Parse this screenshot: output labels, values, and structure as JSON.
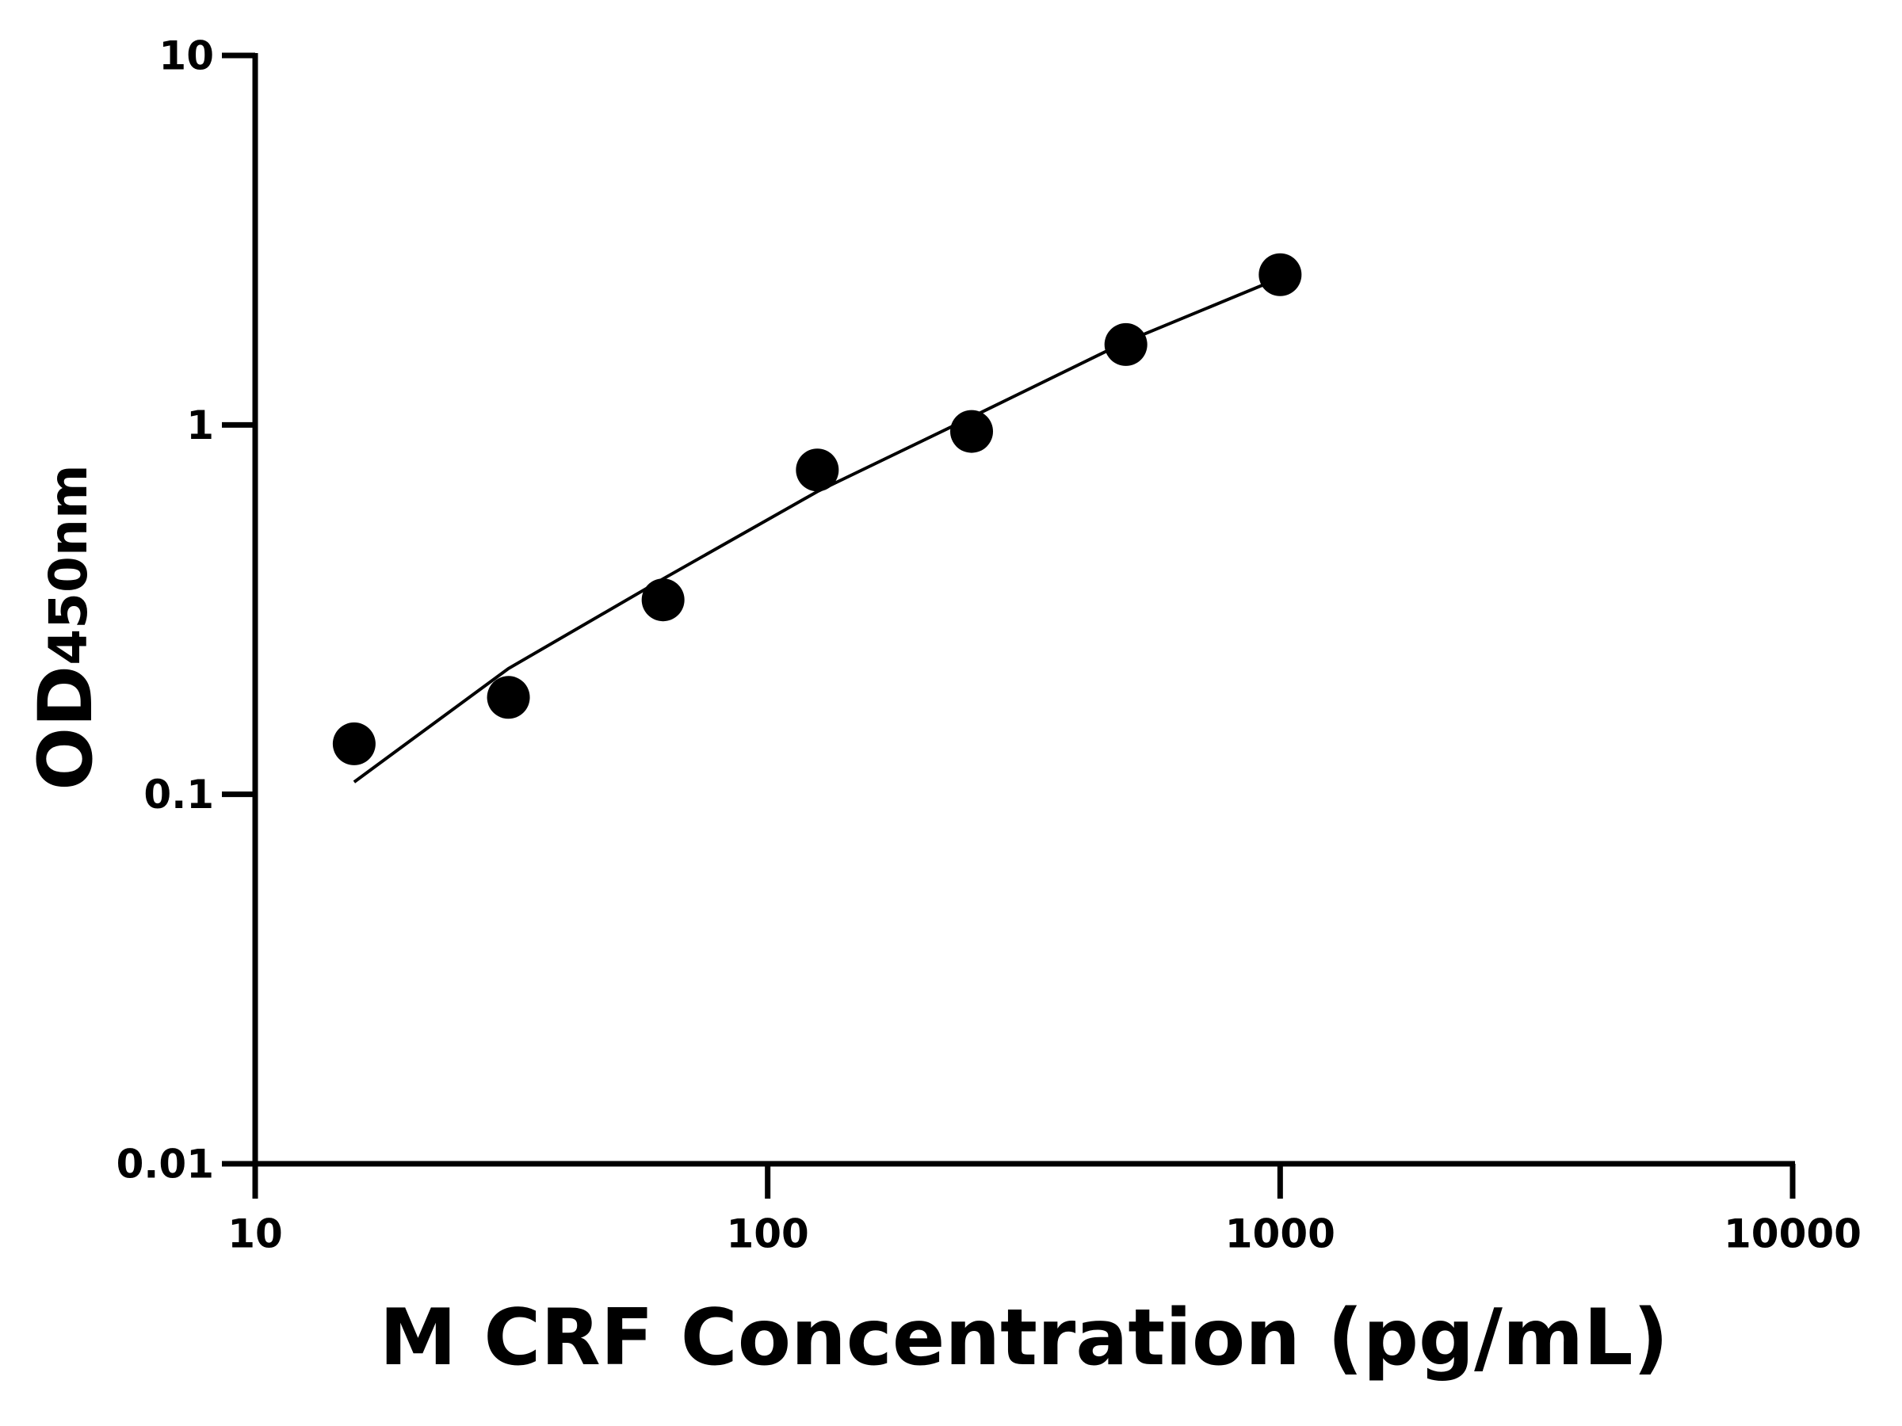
{
  "chart_data": {
    "type": "scatter",
    "xlabel": "M CRF Concentration (pg/mL)",
    "ylabel": {
      "main": "OD",
      "sub": "450nm"
    },
    "x": [
      15.6,
      31.2,
      62.5,
      125,
      250,
      500,
      1000
    ],
    "series": [
      {
        "mode": "markers",
        "color": "#000000",
        "values": [
          0.137,
          0.183,
          0.336,
          0.755,
          0.96,
          1.65,
          2.55
        ]
      },
      {
        "mode": "line",
        "color": "#000000",
        "values": [
          0.108,
          0.219,
          0.383,
          0.66,
          1.05,
          1.68,
          2.5
        ]
      }
    ],
    "xscale": "log",
    "yscale": "log",
    "xlim": [
      10,
      10000
    ],
    "xticks": [
      10,
      100,
      1000,
      10000
    ],
    "ylim": [
      0.01,
      10
    ],
    "yticks": [
      0.01,
      0.1,
      1,
      10
    ],
    "grid": false
  }
}
